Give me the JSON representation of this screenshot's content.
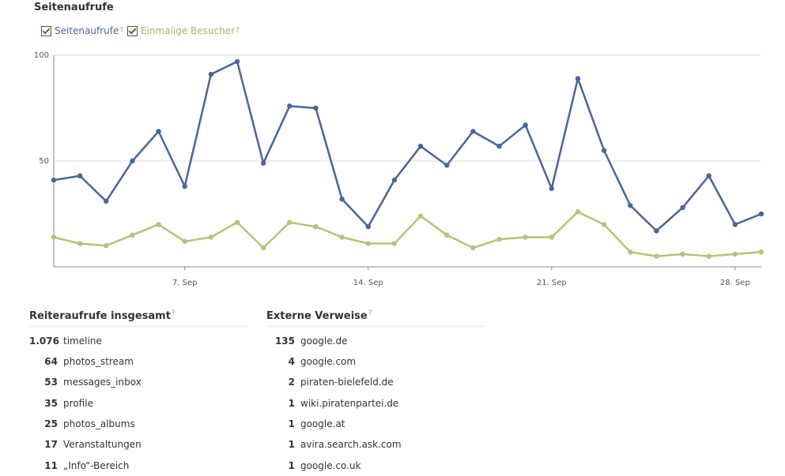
{
  "title": "Seitenaufrufe",
  "help_mark": "?",
  "chart_data": {
    "type": "line",
    "categories": [
      null,
      null,
      null,
      null,
      null,
      "7. Sep",
      null,
      null,
      null,
      null,
      null,
      null,
      "14. Sep",
      null,
      null,
      null,
      null,
      null,
      null,
      "21. Sep",
      null,
      null,
      null,
      null,
      null,
      null,
      "28. Sep",
      null
    ],
    "series": [
      {
        "name": "Seitenaufrufe",
        "color": "#4a6599",
        "values": [
          41,
          43,
          31,
          50,
          64,
          38,
          91,
          97,
          49,
          76,
          75,
          32,
          19,
          41,
          57,
          48,
          64,
          57,
          67,
          37,
          89,
          55,
          29,
          17,
          28,
          43,
          20,
          25
        ]
      },
      {
        "name": "Einmalige Besucher",
        "color": "#b3c478",
        "values": [
          14,
          11,
          10,
          15,
          20,
          12,
          14,
          21,
          9,
          21,
          19,
          14,
          11,
          11,
          24,
          15,
          9,
          13,
          14,
          14,
          26,
          20,
          7,
          5,
          6,
          5,
          6,
          7
        ]
      }
    ],
    "ylim": [
      0,
      100
    ],
    "yticks": [
      50,
      100
    ],
    "grid": true
  },
  "tables": [
    {
      "title": "Reiteraufrufe insgesamt",
      "rows": [
        [
          "1.076",
          "timeline"
        ],
        [
          "64",
          "photos_stream"
        ],
        [
          "53",
          "messages_inbox"
        ],
        [
          "35",
          "profile"
        ],
        [
          "25",
          "photos_albums"
        ],
        [
          "17",
          "Veranstaltungen"
        ],
        [
          "11",
          "„Info“-Bereich"
        ]
      ]
    },
    {
      "title": "Externe Verweise",
      "rows": [
        [
          "135",
          "google.de"
        ],
        [
          "4",
          "google.com"
        ],
        [
          "2",
          "piraten-bielefeld.de"
        ],
        [
          "1",
          "wiki.piratenpartei.de"
        ],
        [
          "1",
          "google.at"
        ],
        [
          "1",
          "avira.search.ask.com"
        ],
        [
          "1",
          "google.co.uk"
        ]
      ]
    }
  ]
}
